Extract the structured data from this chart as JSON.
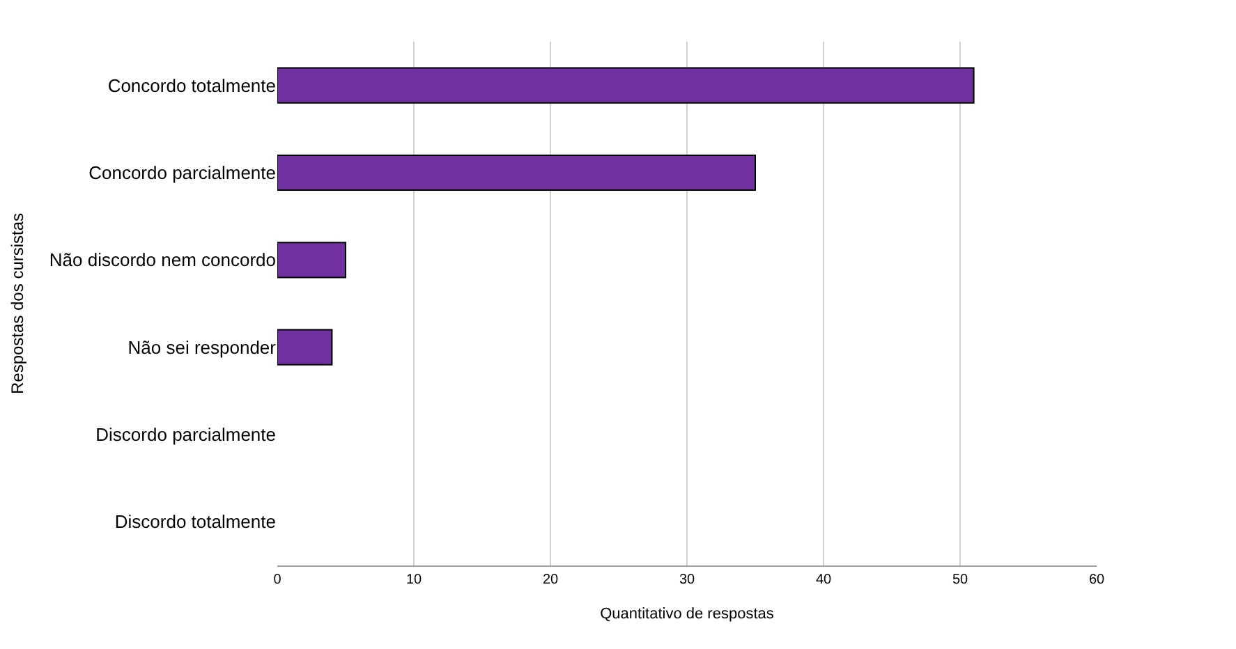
{
  "chart_data": {
    "type": "bar",
    "orientation": "horizontal",
    "xlabel": "Quantitativo de respostas",
    "ylabel": "Respostas dos cursistas",
    "categories": [
      "Concordo totalmente",
      "Concordo parcialmente",
      "Não discordo nem concordo",
      "Não sei responder",
      "Discordo parcialmente",
      "Discordo totalmente"
    ],
    "values": [
      51,
      35,
      5,
      4,
      0,
      0
    ],
    "color": "#7030a0",
    "xlim": [
      0,
      60
    ],
    "xticks": [
      0,
      10,
      20,
      30,
      40,
      50,
      60
    ],
    "grid": "x"
  }
}
